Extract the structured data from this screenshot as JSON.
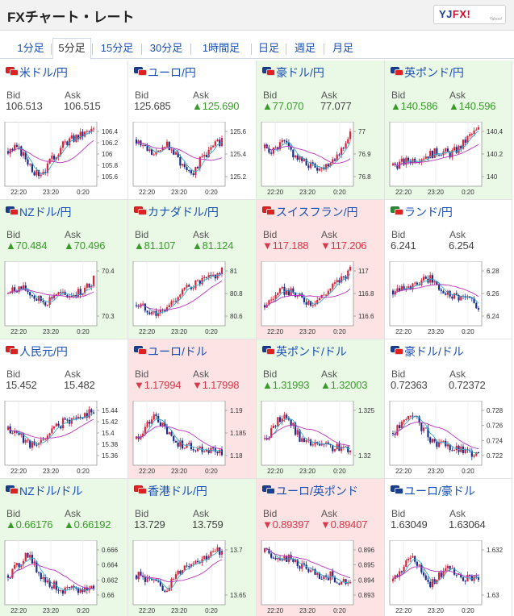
{
  "header": {
    "title": "FXチャート・レート",
    "logo_text": "YJFX!",
    "logo_sub": "Yahoo!"
  },
  "tabs": [
    "1分足",
    "5分足",
    "15分足",
    "30分足",
    "1時間足",
    "日足",
    "週足",
    "月足"
  ],
  "active_tab": 1,
  "labels": {
    "bid": "Bid",
    "ask": "Ask"
  },
  "colors": {
    "up": "#3a9b2a",
    "down": "#d9374b",
    "link": "#1a4fb5",
    "up_bg": "#e9f9e6",
    "down_bg": "#fde3e3",
    "candle_up": "#d9253b",
    "candle_down": "#1b2e8c",
    "ma_short": "#33aacc",
    "ma_long": "#bb33bb"
  },
  "x_labels": [
    "22:20",
    "23:20",
    "0:20"
  ],
  "pairs": [
    {
      "name": "米ドル/円",
      "flags": [
        "#d22",
        "#d22"
      ],
      "state": "flat",
      "bid": "106.513",
      "ask": "106.515",
      "bid_dir": "n",
      "ask_dir": "n",
      "y_ticks": [
        "106.4",
        "106.2",
        "106",
        "105.8",
        "105.6"
      ],
      "trend": [
        0.55,
        0.6,
        0.4,
        0.15,
        0.25,
        0.5,
        0.7,
        0.78,
        0.85,
        0.92
      ]
    },
    {
      "name": "ユーロ/円",
      "flags": [
        "#1a3f8f",
        "#d22"
      ],
      "state": "flat",
      "bid": "125.685",
      "ask": "▲125.690",
      "bid_dir": "n",
      "ask_dir": "u",
      "y_ticks": [
        "125.6",
        "125.4",
        "125.2"
      ],
      "trend": [
        0.75,
        0.6,
        0.45,
        0.7,
        0.5,
        0.3,
        0.2,
        0.45,
        0.6,
        0.75
      ]
    },
    {
      "name": "豪ドル/円",
      "flags": [
        "#1a3f8f",
        "#d22"
      ],
      "state": "up",
      "bid": "▲77.070",
      "ask": "77.077",
      "bid_dir": "u",
      "ask_dir": "n",
      "y_ticks": [
        "77",
        "76.9",
        "76.8"
      ],
      "trend": [
        0.6,
        0.55,
        0.7,
        0.5,
        0.35,
        0.3,
        0.25,
        0.4,
        0.55,
        0.85
      ]
    },
    {
      "name": "英ポンド/円",
      "flags": [
        "#1a3f8f",
        "#d22"
      ],
      "state": "up",
      "bid": "▲140.586",
      "ask": "▲140.596",
      "bid_dir": "u",
      "ask_dir": "u",
      "y_ticks": [
        "140.4",
        "140.2",
        "140"
      ],
      "trend": [
        0.3,
        0.35,
        0.4,
        0.45,
        0.5,
        0.55,
        0.5,
        0.6,
        0.8,
        0.92
      ]
    },
    {
      "name": "NZドル/円",
      "flags": [
        "#1a3f8f",
        "#d22"
      ],
      "state": "up",
      "bid": "▲70.484",
      "ask": "▲70.496",
      "bid_dir": "u",
      "ask_dir": "u",
      "y_ticks": [
        "70.4",
        "70.3"
      ],
      "trend": [
        0.5,
        0.6,
        0.55,
        0.4,
        0.35,
        0.5,
        0.45,
        0.5,
        0.55,
        0.75
      ]
    },
    {
      "name": "カナダドル/円",
      "flags": [
        "#d22",
        "#d22"
      ],
      "state": "up",
      "bid": "▲81.107",
      "ask": "▲81.124",
      "bid_dir": "u",
      "ask_dir": "u",
      "y_ticks": [
        "81",
        "80.8",
        "80.6"
      ],
      "trend": [
        0.3,
        0.25,
        0.15,
        0.2,
        0.4,
        0.55,
        0.65,
        0.7,
        0.78,
        0.88
      ]
    },
    {
      "name": "スイスフラン/円",
      "flags": [
        "#d22",
        "#d22"
      ],
      "state": "down",
      "bid": "▼117.188",
      "ask": "▼117.206",
      "bid_dir": "d",
      "ask_dir": "d",
      "y_ticks": [
        "117",
        "116.8",
        "116.6"
      ],
      "trend": [
        0.3,
        0.45,
        0.55,
        0.5,
        0.4,
        0.35,
        0.45,
        0.6,
        0.75,
        0.9
      ]
    },
    {
      "name": "ランド/円",
      "flags": [
        "#2a8a3a",
        "#d22"
      ],
      "state": "flat",
      "bid": "6.241",
      "ask": "6.254",
      "bid_dir": "n",
      "ask_dir": "n",
      "y_ticks": [
        "6.28",
        "6.26",
        "6.24"
      ],
      "trend": [
        0.55,
        0.65,
        0.6,
        0.7,
        0.75,
        0.55,
        0.5,
        0.45,
        0.4,
        0.3
      ]
    },
    {
      "name": "人民元/円",
      "flags": [
        "#d22",
        "#d22"
      ],
      "state": "flat",
      "bid": "15.452",
      "ask": "15.482",
      "bid_dir": "n",
      "ask_dir": "n",
      "y_ticks": [
        "15.44",
        "15.42",
        "15.4",
        "15.38",
        "15.36"
      ],
      "trend": [
        0.55,
        0.5,
        0.35,
        0.25,
        0.45,
        0.6,
        0.7,
        0.75,
        0.8,
        0.9
      ]
    },
    {
      "name": "ユーロ/ドル",
      "flags": [
        "#1a3f8f",
        "#d22"
      ],
      "state": "down",
      "bid": "▼1.17994",
      "ask": "▼1.17998",
      "bid_dir": "d",
      "ask_dir": "d",
      "y_ticks": [
        "1.19",
        "1.185",
        "1.18"
      ],
      "trend": [
        0.4,
        0.6,
        0.8,
        0.55,
        0.35,
        0.3,
        0.25,
        0.22,
        0.2,
        0.18
      ]
    },
    {
      "name": "英ポンド/ドル",
      "flags": [
        "#1a3f8f",
        "#d22"
      ],
      "state": "up",
      "bid": "▲1.31993",
      "ask": "▲1.32003",
      "bid_dir": "u",
      "ask_dir": "u",
      "y_ticks": [
        "1.325",
        "1.32"
      ],
      "trend": [
        0.4,
        0.6,
        0.85,
        0.6,
        0.35,
        0.3,
        0.28,
        0.25,
        0.22,
        0.25
      ]
    },
    {
      "name": "豪ドル/ドル",
      "flags": [
        "#1a3f8f",
        "#d22"
      ],
      "state": "flat",
      "bid": "0.72363",
      "ask": "0.72372",
      "bid_dir": "n",
      "ask_dir": "n",
      "y_ticks": [
        "0.728",
        "0.726",
        "0.724",
        "0.722"
      ],
      "trend": [
        0.5,
        0.65,
        0.85,
        0.6,
        0.4,
        0.3,
        0.25,
        0.2,
        0.15,
        0.2
      ]
    },
    {
      "name": "NZドル/ドル",
      "flags": [
        "#1a3f8f",
        "#d22"
      ],
      "state": "up",
      "bid": "▲0.66176",
      "ask": "▲0.66192",
      "bid_dir": "u",
      "ask_dir": "u",
      "y_ticks": [
        "0.666",
        "0.664",
        "0.662",
        "0.66"
      ],
      "trend": [
        0.45,
        0.6,
        0.85,
        0.55,
        0.35,
        0.25,
        0.2,
        0.18,
        0.2,
        0.25
      ]
    },
    {
      "name": "香港ドル/円",
      "flags": [
        "#d22",
        "#d22"
      ],
      "state": "up",
      "bid": "13.729",
      "ask": "13.759",
      "bid_dir": "n",
      "ask_dir": "n",
      "y_ticks": [
        "13.7",
        "13.65"
      ],
      "trend": [
        0.45,
        0.4,
        0.3,
        0.2,
        0.4,
        0.6,
        0.7,
        0.75,
        0.82,
        0.9
      ]
    },
    {
      "name": "ユーロ/英ポンド",
      "flags": [
        "#1a3f8f",
        "#1a3f8f"
      ],
      "state": "down",
      "bid": "▼0.89397",
      "ask": "▼0.89407",
      "bid_dir": "d",
      "ask_dir": "d",
      "y_ticks": [
        "0.896",
        "0.895",
        "0.894",
        "0.893"
      ],
      "trend": [
        0.85,
        0.8,
        0.75,
        0.7,
        0.6,
        0.5,
        0.35,
        0.45,
        0.3,
        0.35
      ]
    },
    {
      "name": "ユーロ/豪ドル",
      "flags": [
        "#1a3f8f",
        "#1a3f8f"
      ],
      "state": "flat",
      "bid": "1.63049",
      "ask": "1.63064",
      "bid_dir": "n",
      "ask_dir": "n",
      "y_ticks": [
        "1.632",
        "1.63"
      ],
      "trend": [
        0.35,
        0.55,
        0.8,
        0.5,
        0.3,
        0.45,
        0.6,
        0.45,
        0.4,
        0.38
      ]
    }
  ]
}
